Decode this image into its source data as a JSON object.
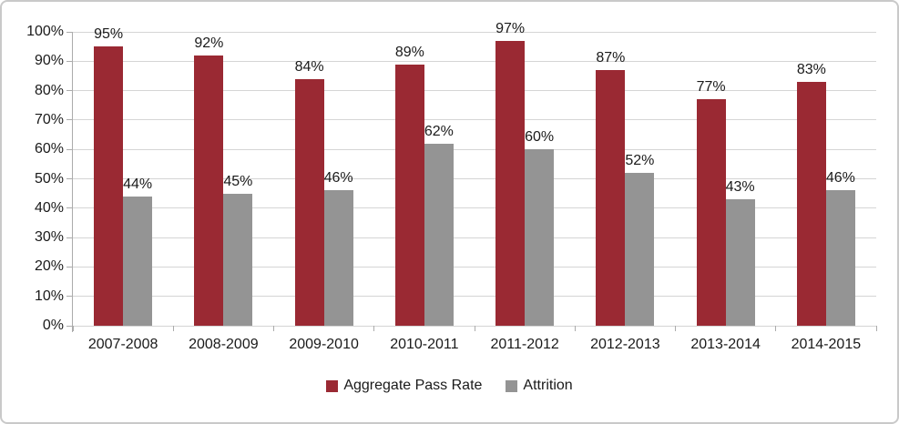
{
  "chart_data": {
    "type": "bar",
    "title": "",
    "xlabel": "",
    "ylabel": "",
    "categories": [
      "2007-2008",
      "2008-2009",
      "2009-2010",
      "2010-2011",
      "2011-2012",
      "2012-2013",
      "2013-2014",
      "2014-2015"
    ],
    "series": [
      {
        "name": "Aggregate Pass Rate",
        "color": "#9a2933",
        "values": [
          95,
          92,
          84,
          89,
          97,
          87,
          77,
          83
        ],
        "labels": [
          "95%",
          "92%",
          "84%",
          "89%",
          "97%",
          "87%",
          "77%",
          "83%"
        ]
      },
      {
        "name": "Attrition",
        "color": "#949494",
        "values": [
          44,
          45,
          46,
          62,
          60,
          52,
          43,
          46
        ],
        "labels": [
          "44%",
          "45%",
          "46%",
          "62%",
          "60%",
          "52%",
          "43%",
          "46%"
        ]
      }
    ],
    "ylim": [
      0,
      100
    ],
    "y_ticks": [
      "0%",
      "10%",
      "20%",
      "30%",
      "40%",
      "50%",
      "60%",
      "70%",
      "80%",
      "90%",
      "100%"
    ],
    "grid": true,
    "legend_position": "bottom",
    "colors": {
      "gridline": "#d5d5d5",
      "axis": "#ababab",
      "text": "#1a1a1a",
      "frame_border": "#c9c9c9"
    }
  }
}
